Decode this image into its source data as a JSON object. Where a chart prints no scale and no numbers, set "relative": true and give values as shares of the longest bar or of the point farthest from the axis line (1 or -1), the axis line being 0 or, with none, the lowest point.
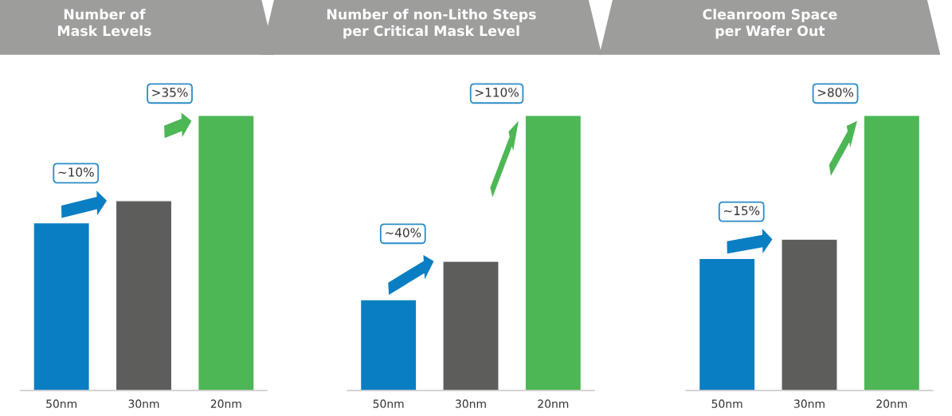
{
  "chart_data": [
    {
      "type": "bar",
      "title": "Number of\nMask Levels",
      "relative": true,
      "categories": [
        "50nm",
        "30nm",
        "20nm"
      ],
      "values": [
        0.61,
        0.69,
        1
      ],
      "colors": [
        "#0a7ec2",
        "#5d5e5b",
        "#4cb754"
      ],
      "annotations": [
        "~10%",
        ">35%"
      ],
      "grid": false,
      "legend": false
    },
    {
      "type": "bar",
      "title": "Number of non-Litho Steps\nper Critical Mask Level",
      "relative": true,
      "categories": [
        "50nm",
        "30nm",
        "20nm"
      ],
      "values": [
        0.33,
        0.47,
        1
      ],
      "colors": [
        "#0a7ec2",
        "#5d5e5b",
        "#4cb754"
      ],
      "annotations": [
        "~40%",
        ">110%"
      ],
      "grid": false,
      "legend": false
    },
    {
      "type": "bar",
      "title": "Cleanroom Space\nper Wafer Out",
      "relative": true,
      "categories": [
        "50nm",
        "30nm",
        "20nm"
      ],
      "values": [
        0.48,
        0.55,
        1
      ],
      "colors": [
        "#0a7ec2",
        "#5d5e5b",
        "#4cb754"
      ],
      "annotations": [
        "~15%",
        ">80%"
      ],
      "grid": false,
      "legend": false
    }
  ]
}
